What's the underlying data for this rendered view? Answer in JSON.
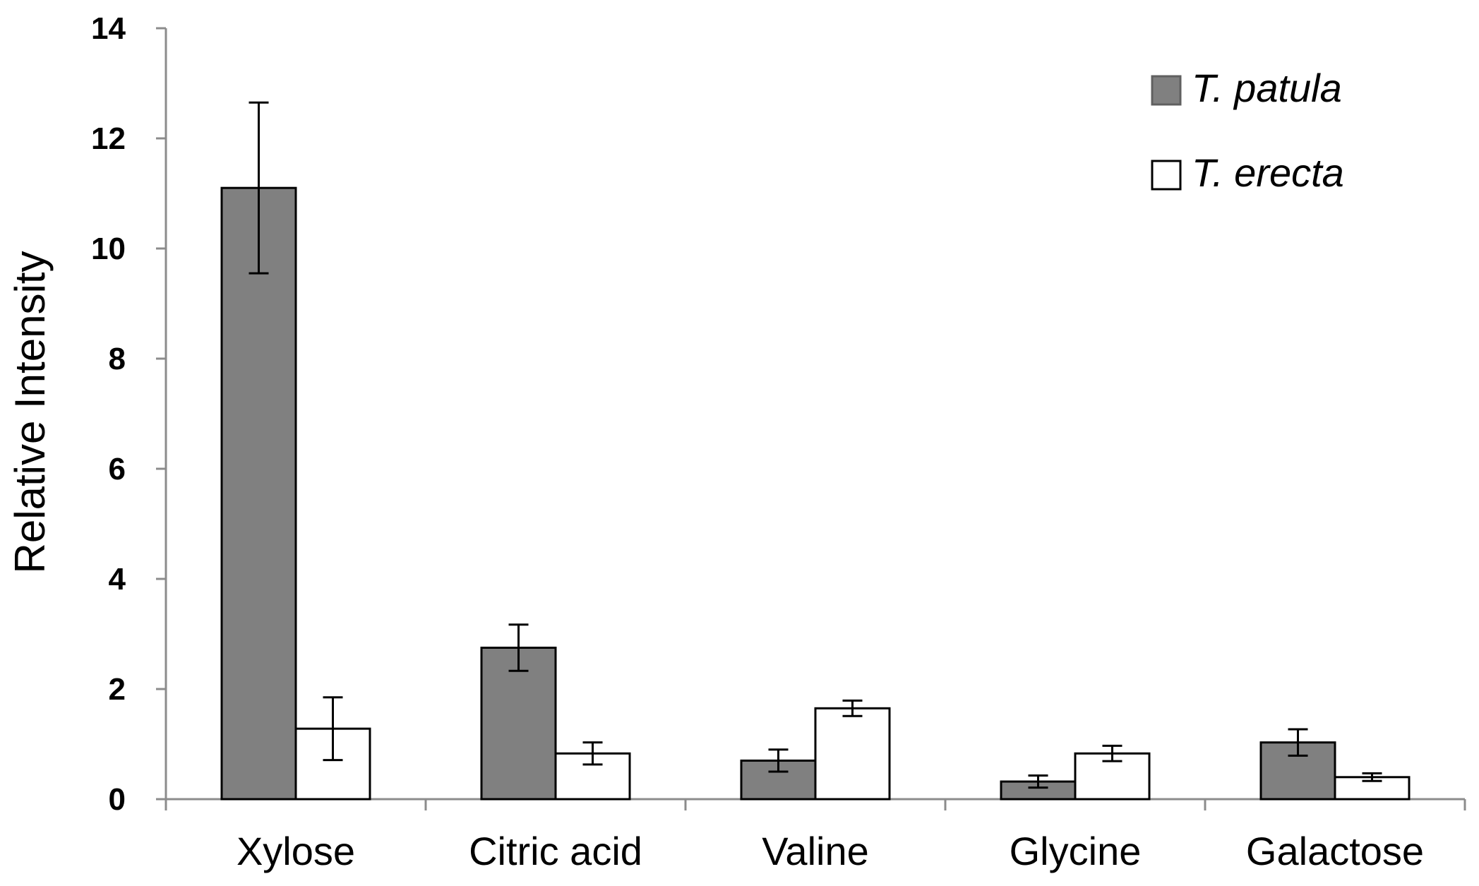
{
  "chart_data": {
    "type": "bar",
    "title": "",
    "xlabel": "",
    "ylabel": "Relative Intensity",
    "ylim": [
      0,
      14
    ],
    "yticks": [
      0,
      2,
      4,
      6,
      8,
      10,
      12,
      14
    ],
    "grid": false,
    "legend_position": "top-right",
    "categories": [
      "Xylose",
      "Citric acid",
      "Valine",
      "Glycine",
      "Galactose"
    ],
    "series": [
      {
        "name": "T. patula",
        "color": "#808080",
        "values": [
          11.1,
          2.75,
          0.7,
          0.32,
          1.03
        ],
        "errors": [
          1.55,
          0.42,
          0.2,
          0.11,
          0.24
        ]
      },
      {
        "name": "T. erecta",
        "color": "#ffffff",
        "values": [
          1.28,
          0.83,
          1.65,
          0.83,
          0.4
        ],
        "errors": [
          0.57,
          0.2,
          0.14,
          0.14,
          0.07
        ]
      }
    ]
  }
}
